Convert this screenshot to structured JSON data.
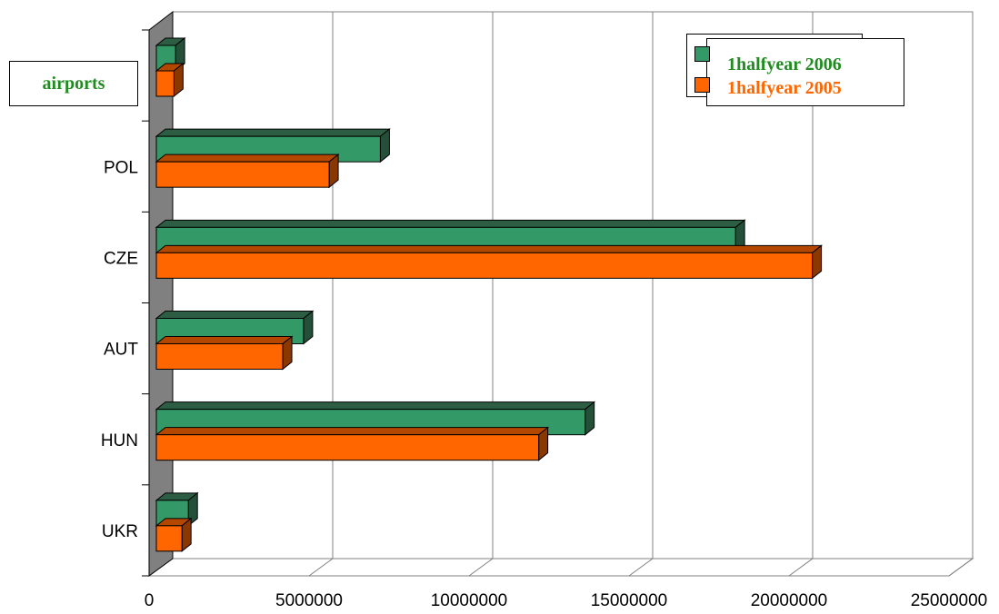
{
  "box_label": "airports",
  "legend": {
    "entries": [
      {
        "label": "1halfyear 2006",
        "color": "#339966",
        "text_color": "#228B22"
      },
      {
        "label": "1halfyear 2005",
        "color": "#FF6600",
        "text_color": "#FF6600"
      }
    ]
  },
  "chart_data": {
    "type": "bar",
    "orientation": "horizontal",
    "style": "3d",
    "categories": [
      "",
      "POL",
      "CZE",
      "AUT",
      "HUN",
      "UKR"
    ],
    "series": [
      {
        "name": "1halfyear 2006",
        "color": "#339966",
        "values": [
          600000,
          7000000,
          18100000,
          4600000,
          13400000,
          1000000
        ]
      },
      {
        "name": "1halfyear 2005",
        "color": "#FF6600",
        "values": [
          550000,
          5400000,
          20500000,
          3950000,
          11950000,
          800000
        ]
      }
    ],
    "x_ticks": [
      "0",
      "5000000",
      "10000000",
      "15000000",
      "20000000",
      "25000000"
    ],
    "xlim": [
      0,
      25000000
    ],
    "grid": true,
    "legend_position": "top-right"
  }
}
